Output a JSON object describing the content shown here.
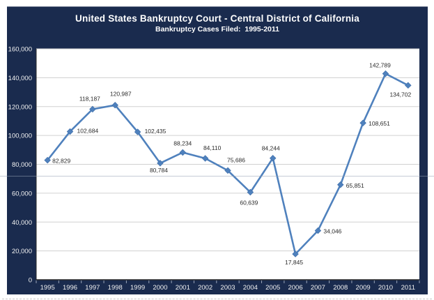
{
  "header": {
    "title": "United States Bankruptcy Court - Central District of California",
    "subtitle": "Bankruptcy Cases Filed:  1995-2011"
  },
  "colors": {
    "panel_bg": "#1a2b4e",
    "plot_bg": "#ffffff",
    "line": "#4f81bd",
    "marker": "#4f81bd",
    "marker_edge": "#3d6da8",
    "gridline": "#d0d0d0",
    "axis_line": "#2a2a2a",
    "tick_mark": "#9aa5b8",
    "axis_text": "#f2f2f2",
    "data_label_text": "#2b2b2b",
    "header_text": "#ffffff"
  },
  "chart_data": {
    "type": "line",
    "title": "United States Bankruptcy Court - Central District of California",
    "subtitle": "Bankruptcy Cases Filed:  1995-2011",
    "categories": [
      "1995",
      "1996",
      "1997",
      "1998",
      "1999",
      "2000",
      "2001",
      "2002",
      "2003",
      "2004",
      "2005",
      "2006",
      "2007",
      "2008",
      "2009",
      "2010",
      "2011"
    ],
    "series": [
      {
        "name": "Bankruptcy Cases Filed",
        "values": [
          82829,
          102684,
          118187,
          120987,
          102435,
          80784,
          88234,
          84110,
          75686,
          60639,
          84244,
          17845,
          34046,
          65851,
          108651,
          142789,
          134702
        ]
      }
    ],
    "xlabel": "",
    "ylabel": "",
    "ylim": [
      0,
      160000
    ],
    "y_tick_step": 20000,
    "y_tick_labels": [
      "0",
      "20,000",
      "40,000",
      "60,000",
      "80,000",
      "100,000",
      "120,000",
      "140,000",
      "160,000"
    ],
    "grid": "horizontal",
    "legend": "none",
    "marker_shape": "diamond",
    "data_labels_visible": true
  }
}
